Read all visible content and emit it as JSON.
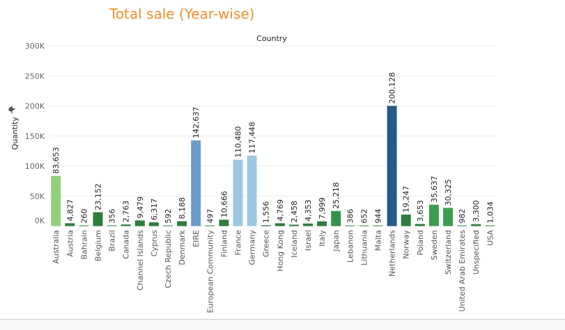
{
  "chart_data": {
    "type": "bar",
    "title": "Total sale (Year-wise)",
    "column_header": "Country",
    "ylabel": "Quantity",
    "ylim": [
      0,
      300000
    ],
    "yticks": [
      0,
      50000,
      100000,
      150000,
      200000,
      250000,
      300000
    ],
    "ytick_labels": [
      "0K",
      "50K",
      "100K",
      "150K",
      "200K",
      "250K",
      "300K"
    ],
    "categories": [
      "Australia",
      "Austria",
      "Bahrain",
      "Belgium",
      "Brazil",
      "Canada",
      "Channel Islands",
      "Cyprus",
      "Czech Republic",
      "Denmark",
      "EIRE",
      "European Community",
      "Finland",
      "France",
      "Germany",
      "Greece",
      "Hong Kong",
      "Iceland",
      "Israel",
      "Italy",
      "Japan",
      "Lebanon",
      "Lithuania",
      "Malta",
      "Netherlands",
      "Norway",
      "Poland",
      "Sweden",
      "Switzerland",
      "United Arab Emirates",
      "Unspecified",
      "USA"
    ],
    "values": [
      83653,
      4827,
      260,
      23152,
      356,
      2763,
      9479,
      6317,
      592,
      8188,
      142637,
      497,
      10666,
      110480,
      117448,
      1556,
      4769,
      2458,
      4353,
      7999,
      25218,
      386,
      652,
      944,
      200128,
      19247,
      3653,
      35637,
      30325,
      982,
      3300,
      1034
    ],
    "value_labels": [
      "83,653",
      "4,827",
      "260",
      "23,152",
      "356",
      "2,763",
      "9,479",
      "6,317",
      "592",
      "8,188",
      "142,637",
      "497",
      "10,666",
      "110,480",
      "117,448",
      "1,556",
      "4,769",
      "2,458",
      "4,353",
      "7,999",
      "25,218",
      "386",
      "652",
      "944",
      "200,128",
      "19,247",
      "3,653",
      "35,637",
      "30,325",
      "982",
      "3,300",
      "1,034"
    ],
    "colors": [
      "#8fd17b",
      "#2e7d3e",
      "#2e7d3e",
      "#2e7d3e",
      "#2e7d3e",
      "#2e7d3e",
      "#2e7d3e",
      "#2e7d3e",
      "#2e7d3e",
      "#2e7d3e",
      "#6b9ec7",
      "#2e7d3e",
      "#2e7d3e",
      "#9ec8e2",
      "#9ec8e2",
      "#2e7d3e",
      "#2e7d3e",
      "#2e7d3e",
      "#2e7d3e",
      "#2e7d3e",
      "#34934a",
      "#2e7d3e",
      "#2e7d3e",
      "#2e7d3e",
      "#255a8a",
      "#2e7d3e",
      "#2e7d3e",
      "#3c9c50",
      "#3c9c50",
      "#2e7d3e",
      "#2e7d3e",
      "#2e7d3e"
    ],
    "grid": true,
    "legend": "none"
  },
  "pin_icon": "pin-icon",
  "grid_color": "#eeeeee"
}
